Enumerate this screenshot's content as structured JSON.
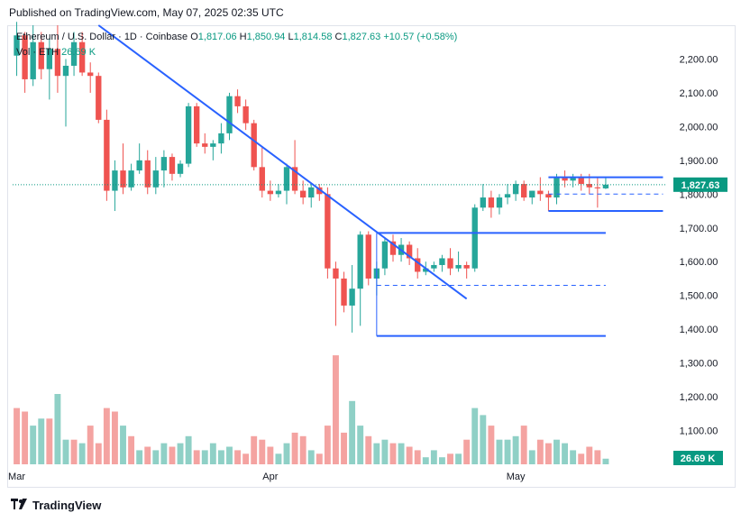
{
  "published": "Published on TradingView.com, May 07, 2025 02:35 UTC",
  "legend": {
    "symbol": "Ethereum / U.S. Dollar · 1D · Coinbase",
    "o_label": "O",
    "o": "1,817.06",
    "h_label": "H",
    "h": "1,850.94",
    "l_label": "L",
    "l": "1,814.58",
    "c_label": "C",
    "c": "1,827.63",
    "change": "+10.57 (+0.58%)"
  },
  "volume": {
    "label": "Vol · ETH",
    "value": "26.69 K"
  },
  "footer": {
    "brand": "TradingView",
    "logo_icon": "tradingview-logo-icon"
  },
  "colors": {
    "up": "#26a69a",
    "down": "#ef5350",
    "vol_up": "#8fd0c6",
    "vol_down": "#f4a3a1",
    "drawing": "#2962ff",
    "last_price": "#089981"
  },
  "chart_data": {
    "type": "candlestick",
    "title": "Ethereum / U.S. Dollar · 1D · Coinbase",
    "y_axis": {
      "min": 1000,
      "max": 2300,
      "ticks": [
        "1,100.00",
        "1,200.00",
        "1,300.00",
        "1,400.00",
        "1,500.00",
        "1,600.00",
        "1,700.00",
        "1,800.00",
        "1,900.00",
        "2,000.00",
        "2,100.00",
        "2,200.00"
      ],
      "position": "right"
    },
    "x_ticks": [
      {
        "label": "Mar",
        "index": 0
      },
      {
        "label": "Apr",
        "index": 31
      },
      {
        "label": "May",
        "index": 61
      }
    ],
    "last_price_label": "1,827.63",
    "last_volume_label": "26.69 K",
    "candles": [
      {
        "o": 2210,
        "h": 2310,
        "l": 2150,
        "c": 2270
      },
      {
        "o": 2270,
        "h": 2280,
        "l": 2100,
        "c": 2140
      },
      {
        "o": 2140,
        "h": 2300,
        "l": 2120,
        "c": 2250
      },
      {
        "o": 2250,
        "h": 2280,
        "l": 2140,
        "c": 2170
      },
      {
        "o": 2170,
        "h": 2260,
        "l": 2080,
        "c": 2230
      },
      {
        "o": 2230,
        "h": 2300,
        "l": 2100,
        "c": 2150
      },
      {
        "o": 2150,
        "h": 2200,
        "l": 2000,
        "c": 2180
      },
      {
        "o": 2180,
        "h": 2280,
        "l": 2150,
        "c": 2250
      },
      {
        "o": 2250,
        "h": 2280,
        "l": 2150,
        "c": 2160
      },
      {
        "o": 2160,
        "h": 2190,
        "l": 2100,
        "c": 2150
      },
      {
        "o": 2150,
        "h": 2160,
        "l": 2010,
        "c": 2020
      },
      {
        "o": 2020,
        "h": 2050,
        "l": 1780,
        "c": 1810
      },
      {
        "o": 1810,
        "h": 1900,
        "l": 1750,
        "c": 1870
      },
      {
        "o": 1870,
        "h": 1950,
        "l": 1800,
        "c": 1820
      },
      {
        "o": 1820,
        "h": 1890,
        "l": 1810,
        "c": 1870
      },
      {
        "o": 1870,
        "h": 1950,
        "l": 1860,
        "c": 1900
      },
      {
        "o": 1900,
        "h": 1930,
        "l": 1800,
        "c": 1820
      },
      {
        "o": 1820,
        "h": 1910,
        "l": 1800,
        "c": 1870
      },
      {
        "o": 1870,
        "h": 1930,
        "l": 1820,
        "c": 1910
      },
      {
        "o": 1910,
        "h": 1920,
        "l": 1840,
        "c": 1860
      },
      {
        "o": 1860,
        "h": 1900,
        "l": 1850,
        "c": 1890
      },
      {
        "o": 1890,
        "h": 2070,
        "l": 1880,
        "c": 2060
      },
      {
        "o": 2060,
        "h": 2070,
        "l": 1940,
        "c": 1950
      },
      {
        "o": 1950,
        "h": 1980,
        "l": 1920,
        "c": 1940
      },
      {
        "o": 1940,
        "h": 1960,
        "l": 1900,
        "c": 1950
      },
      {
        "o": 1950,
        "h": 2010,
        "l": 1920,
        "c": 1980
      },
      {
        "o": 1980,
        "h": 2100,
        "l": 1960,
        "c": 2090
      },
      {
        "o": 2090,
        "h": 2110,
        "l": 2040,
        "c": 2060
      },
      {
        "o": 2060,
        "h": 2080,
        "l": 1990,
        "c": 2010
      },
      {
        "o": 2010,
        "h": 2020,
        "l": 1870,
        "c": 1880
      },
      {
        "o": 1880,
        "h": 1940,
        "l": 1790,
        "c": 1810
      },
      {
        "o": 1810,
        "h": 1840,
        "l": 1780,
        "c": 1800
      },
      {
        "o": 1800,
        "h": 1830,
        "l": 1790,
        "c": 1810
      },
      {
        "o": 1810,
        "h": 1890,
        "l": 1770,
        "c": 1880
      },
      {
        "o": 1880,
        "h": 1960,
        "l": 1800,
        "c": 1810
      },
      {
        "o": 1810,
        "h": 1840,
        "l": 1770,
        "c": 1790
      },
      {
        "o": 1790,
        "h": 1830,
        "l": 1760,
        "c": 1820
      },
      {
        "o": 1820,
        "h": 1830,
        "l": 1780,
        "c": 1800
      },
      {
        "o": 1800,
        "h": 1820,
        "l": 1550,
        "c": 1580
      },
      {
        "o": 1580,
        "h": 1600,
        "l": 1410,
        "c": 1550
      },
      {
        "o": 1550,
        "h": 1570,
        "l": 1450,
        "c": 1470
      },
      {
        "o": 1470,
        "h": 1590,
        "l": 1390,
        "c": 1520
      },
      {
        "o": 1520,
        "h": 1690,
        "l": 1410,
        "c": 1680
      },
      {
        "o": 1680,
        "h": 1690,
        "l": 1530,
        "c": 1550
      },
      {
        "o": 1550,
        "h": 1600,
        "l": 1500,
        "c": 1580
      },
      {
        "o": 1580,
        "h": 1670,
        "l": 1560,
        "c": 1660
      },
      {
        "o": 1660,
        "h": 1680,
        "l": 1600,
        "c": 1620
      },
      {
        "o": 1620,
        "h": 1670,
        "l": 1600,
        "c": 1650
      },
      {
        "o": 1650,
        "h": 1660,
        "l": 1590,
        "c": 1610
      },
      {
        "o": 1610,
        "h": 1640,
        "l": 1550,
        "c": 1570
      },
      {
        "o": 1570,
        "h": 1600,
        "l": 1560,
        "c": 1580
      },
      {
        "o": 1580,
        "h": 1600,
        "l": 1570,
        "c": 1590
      },
      {
        "o": 1590,
        "h": 1620,
        "l": 1570,
        "c": 1610
      },
      {
        "o": 1610,
        "h": 1640,
        "l": 1560,
        "c": 1580
      },
      {
        "o": 1580,
        "h": 1630,
        "l": 1570,
        "c": 1590
      },
      {
        "o": 1590,
        "h": 1600,
        "l": 1550,
        "c": 1580
      },
      {
        "o": 1580,
        "h": 1770,
        "l": 1570,
        "c": 1760
      },
      {
        "o": 1760,
        "h": 1830,
        "l": 1750,
        "c": 1790
      },
      {
        "o": 1790,
        "h": 1810,
        "l": 1730,
        "c": 1760
      },
      {
        "o": 1760,
        "h": 1800,
        "l": 1740,
        "c": 1790
      },
      {
        "o": 1790,
        "h": 1830,
        "l": 1770,
        "c": 1800
      },
      {
        "o": 1800,
        "h": 1840,
        "l": 1780,
        "c": 1830
      },
      {
        "o": 1830,
        "h": 1840,
        "l": 1780,
        "c": 1790
      },
      {
        "o": 1790,
        "h": 1810,
        "l": 1770,
        "c": 1810
      },
      {
        "o": 1810,
        "h": 1850,
        "l": 1780,
        "c": 1800
      },
      {
        "o": 1800,
        "h": 1810,
        "l": 1750,
        "c": 1790
      },
      {
        "o": 1790,
        "h": 1860,
        "l": 1770,
        "c": 1850
      },
      {
        "o": 1850,
        "h": 1870,
        "l": 1820,
        "c": 1840
      },
      {
        "o": 1840,
        "h": 1860,
        "l": 1820,
        "c": 1850
      },
      {
        "o": 1850,
        "h": 1860,
        "l": 1810,
        "c": 1830
      },
      {
        "o": 1830,
        "h": 1860,
        "l": 1800,
        "c": 1820
      },
      {
        "o": 1820,
        "h": 1850,
        "l": 1760,
        "c": 1817
      },
      {
        "o": 1817,
        "h": 1851,
        "l": 1815,
        "c": 1828
      }
    ],
    "volume": [
      {
        "v": 0.8,
        "up": false
      },
      {
        "v": 0.75,
        "up": false
      },
      {
        "v": 0.55,
        "up": true
      },
      {
        "v": 0.65,
        "up": true
      },
      {
        "v": 0.65,
        "up": false
      },
      {
        "v": 1.0,
        "up": true
      },
      {
        "v": 0.35,
        "up": true
      },
      {
        "v": 0.35,
        "up": false
      },
      {
        "v": 0.3,
        "up": true
      },
      {
        "v": 0.55,
        "up": false
      },
      {
        "v": 0.3,
        "up": false
      },
      {
        "v": 0.8,
        "up": false
      },
      {
        "v": 0.75,
        "up": false
      },
      {
        "v": 0.55,
        "up": true
      },
      {
        "v": 0.4,
        "up": false
      },
      {
        "v": 0.2,
        "up": true
      },
      {
        "v": 0.25,
        "up": false
      },
      {
        "v": 0.2,
        "up": true
      },
      {
        "v": 0.3,
        "up": true
      },
      {
        "v": 0.25,
        "up": false
      },
      {
        "v": 0.3,
        "up": true
      },
      {
        "v": 0.4,
        "up": true
      },
      {
        "v": 0.2,
        "up": false
      },
      {
        "v": 0.2,
        "up": true
      },
      {
        "v": 0.3,
        "up": true
      },
      {
        "v": 0.2,
        "up": true
      },
      {
        "v": 0.25,
        "up": true
      },
      {
        "v": 0.2,
        "up": false
      },
      {
        "v": 0.15,
        "up": false
      },
      {
        "v": 0.4,
        "up": false
      },
      {
        "v": 0.35,
        "up": false
      },
      {
        "v": 0.25,
        "up": false
      },
      {
        "v": 0.15,
        "up": true
      },
      {
        "v": 0.3,
        "up": true
      },
      {
        "v": 0.45,
        "up": false
      },
      {
        "v": 0.4,
        "up": false
      },
      {
        "v": 0.2,
        "up": true
      },
      {
        "v": 0.15,
        "up": false
      },
      {
        "v": 0.55,
        "up": false
      },
      {
        "v": 1.55,
        "up": false
      },
      {
        "v": 0.45,
        "up": false
      },
      {
        "v": 0.9,
        "up": true
      },
      {
        "v": 0.55,
        "up": true
      },
      {
        "v": 0.4,
        "up": false
      },
      {
        "v": 0.3,
        "up": true
      },
      {
        "v": 0.35,
        "up": true
      },
      {
        "v": 0.3,
        "up": false
      },
      {
        "v": 0.3,
        "up": true
      },
      {
        "v": 0.25,
        "up": false
      },
      {
        "v": 0.2,
        "up": false
      },
      {
        "v": 0.1,
        "up": true
      },
      {
        "v": 0.2,
        "up": true
      },
      {
        "v": 0.1,
        "up": true
      },
      {
        "v": 0.15,
        "up": false
      },
      {
        "v": 0.15,
        "up": true
      },
      {
        "v": 0.35,
        "up": false
      },
      {
        "v": 0.8,
        "up": true
      },
      {
        "v": 0.7,
        "up": true
      },
      {
        "v": 0.55,
        "up": false
      },
      {
        "v": 0.35,
        "up": true
      },
      {
        "v": 0.35,
        "up": true
      },
      {
        "v": 0.4,
        "up": true
      },
      {
        "v": 0.55,
        "up": false
      },
      {
        "v": 0.2,
        "up": true
      },
      {
        "v": 0.35,
        "up": false
      },
      {
        "v": 0.3,
        "up": false
      },
      {
        "v": 0.35,
        "up": true
      },
      {
        "v": 0.3,
        "up": true
      },
      {
        "v": 0.2,
        "up": true
      },
      {
        "v": 0.15,
        "up": false
      },
      {
        "v": 0.25,
        "up": false
      },
      {
        "v": 0.2,
        "up": false
      },
      {
        "v": 0.08,
        "up": true
      }
    ],
    "drawings": {
      "trendline": {
        "from": {
          "index": 10,
          "price": 2300
        },
        "to": {
          "index": 55,
          "price": 1490
        }
      },
      "box_upper": {
        "from": {
          "index": 44
        },
        "to": {
          "index": 72
        },
        "price": 1685
      },
      "box_lower": {
        "from": {
          "index": 44
        },
        "to": {
          "index": 72
        },
        "price": 1380
      },
      "box_mid_dashed": {
        "from": {
          "index": 44
        },
        "to": {
          "index": 72
        },
        "price": 1530
      },
      "range_upper": {
        "from": {
          "index": 65
        },
        "to": {
          "index": 79
        },
        "price": 1850
      },
      "range_lower": {
        "from": {
          "index": 65
        },
        "to": {
          "index": 79
        },
        "price": 1750
      },
      "range_mid_dashed": {
        "from": {
          "index": 65
        },
        "to": {
          "index": 79
        },
        "price": 1800
      }
    }
  }
}
